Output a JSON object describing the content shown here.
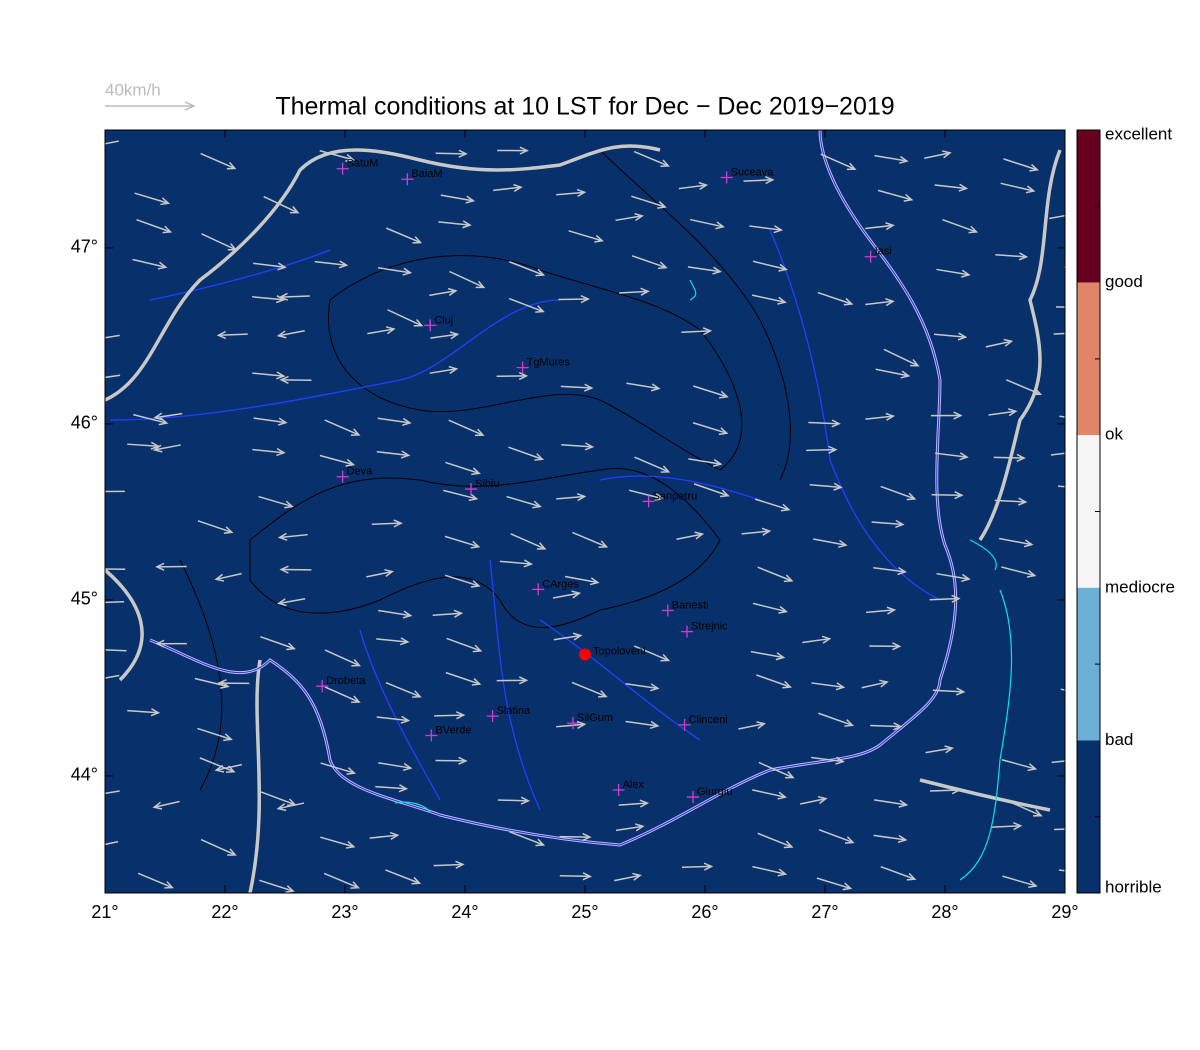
{
  "map": {
    "title": "Thermal conditions at 10 LST for Dec − Dec  2019−2019",
    "wind_scale_label": "40km/h",
    "xlim": [
      21,
      29
    ],
    "ylim": [
      43.335,
      47.67
    ],
    "xticks": [
      {
        "value": 21,
        "label": "21°"
      },
      {
        "value": 22,
        "label": "22°"
      },
      {
        "value": 23,
        "label": "23°"
      },
      {
        "value": 24,
        "label": "24°"
      },
      {
        "value": 25,
        "label": "25°"
      },
      {
        "value": 26,
        "label": "26°"
      },
      {
        "value": 27,
        "label": "27°"
      },
      {
        "value": 28,
        "label": "28°"
      },
      {
        "value": 29,
        "label": "29°"
      }
    ],
    "yticks": [
      {
        "value": 44,
        "label": "44°"
      },
      {
        "value": 45,
        "label": "45°"
      },
      {
        "value": 46,
        "label": "46°"
      },
      {
        "value": 47,
        "label": "47°"
      }
    ],
    "stations": [
      {
        "name": "SatuM",
        "lon": 22.98,
        "lat": 47.45
      },
      {
        "name": "BaiaM",
        "lon": 23.52,
        "lat": 47.39
      },
      {
        "name": "Suceava",
        "lon": 26.18,
        "lat": 47.4
      },
      {
        "name": "Iasi",
        "lon": 27.38,
        "lat": 46.95
      },
      {
        "name": "Cluj",
        "lon": 23.71,
        "lat": 46.56
      },
      {
        "name": "TgMures",
        "lon": 24.48,
        "lat": 46.32
      },
      {
        "name": "Deva",
        "lon": 22.98,
        "lat": 45.7
      },
      {
        "name": "Sibiu",
        "lon": 24.05,
        "lat": 45.63
      },
      {
        "name": "Sanpetru",
        "lon": 25.53,
        "lat": 45.56
      },
      {
        "name": "CArges",
        "lon": 24.61,
        "lat": 45.06
      },
      {
        "name": "Banesti",
        "lon": 25.69,
        "lat": 44.94
      },
      {
        "name": "Strejnic",
        "lon": 25.85,
        "lat": 44.82
      },
      {
        "name": "Drobeta",
        "lon": 22.81,
        "lat": 44.51
      },
      {
        "name": "Slatina",
        "lon": 24.23,
        "lat": 44.34
      },
      {
        "name": "SilGum",
        "lon": 24.9,
        "lat": 44.3
      },
      {
        "name": "Clinceni",
        "lon": 25.83,
        "lat": 44.29
      },
      {
        "name": "BVerde",
        "lon": 23.72,
        "lat": 44.23
      },
      {
        "name": "Alex",
        "lon": 25.28,
        "lat": 43.92
      },
      {
        "name": "Giurgiu",
        "lon": 25.9,
        "lat": 43.88
      }
    ],
    "highlight": {
      "name": "Topoloveni",
      "lon": 25.0,
      "lat": 44.69,
      "color": "#ff0000"
    },
    "fill_color": "#08306b",
    "colorbar": {
      "labels": [
        "excellent",
        "good",
        "ok",
        "mediocre",
        "bad",
        "horrible"
      ],
      "colors": [
        "#67001f",
        "#e0856a",
        "#f5f5f5",
        "#6baed6",
        "#08306b"
      ]
    }
  }
}
